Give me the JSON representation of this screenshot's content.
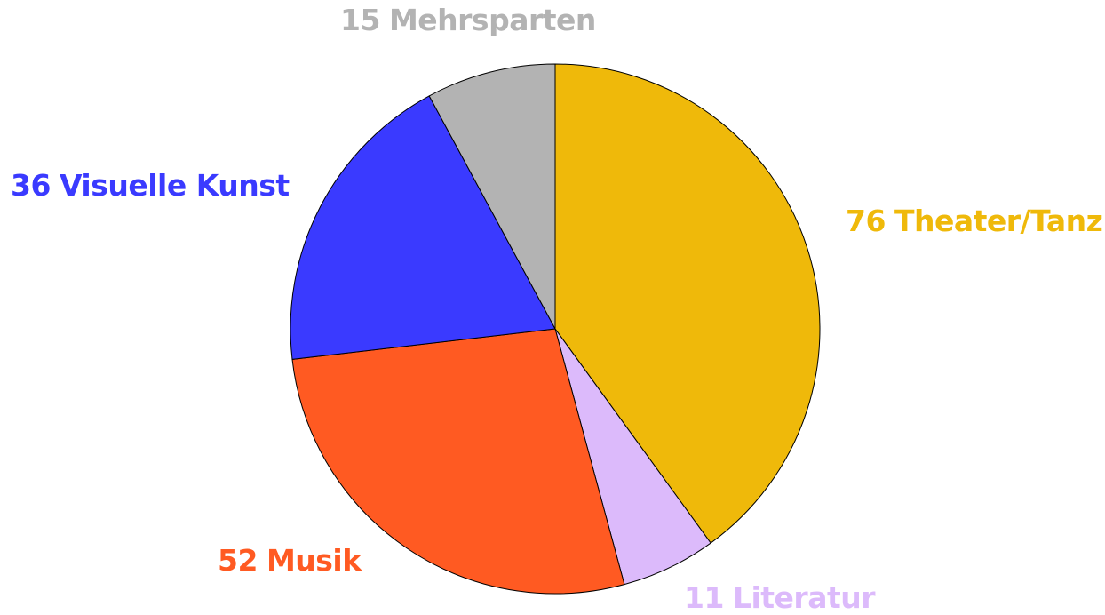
{
  "chart_data": {
    "type": "pie",
    "categories": [
      "Theater/Tanz",
      "Literatur",
      "Musik",
      "Visuelle Kunst",
      "Mehrsparten"
    ],
    "values": [
      76,
      11,
      52,
      36,
      15
    ],
    "colors": [
      "#efb90a",
      "#dcbafb",
      "#ff5a22",
      "#3a3aff",
      "#b3b3b3"
    ]
  }
}
